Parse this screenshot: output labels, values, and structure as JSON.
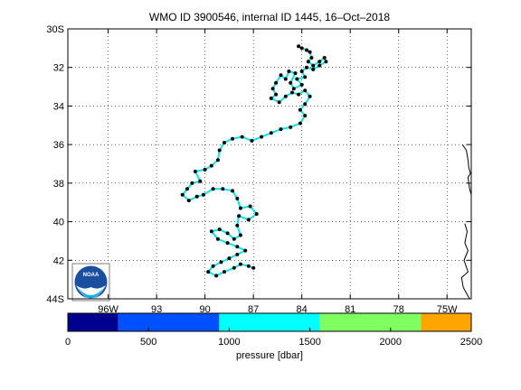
{
  "chart_data": {
    "type": "scatter",
    "title": "WMO ID 3900546, internal ID 1445, 16–Oct–2018",
    "xlim": [
      -98.5,
      -73.5
    ],
    "ylim": [
      -44,
      -30
    ],
    "x_ticks": [
      {
        "value": -96,
        "label": "96W"
      },
      {
        "value": -93,
        "label": "93"
      },
      {
        "value": -90,
        "label": "90"
      },
      {
        "value": -87,
        "label": "87"
      },
      {
        "value": -84,
        "label": "84"
      },
      {
        "value": -81,
        "label": "81"
      },
      {
        "value": -78,
        "label": "78"
      },
      {
        "value": -75,
        "label": "75W"
      }
    ],
    "y_ticks": [
      {
        "value": -30,
        "label": "30S"
      },
      {
        "value": -32,
        "label": "32"
      },
      {
        "value": -34,
        "label": "34"
      },
      {
        "value": -36,
        "label": "36"
      },
      {
        "value": -38,
        "label": "38"
      },
      {
        "value": -40,
        "label": "40"
      },
      {
        "value": -42,
        "label": "42"
      },
      {
        "value": -44,
        "label": "44S"
      }
    ],
    "grid": "dotted",
    "line_color": "#00e5ee",
    "marker_color": "#000000",
    "colorbar": {
      "label": "pressure [dbar]",
      "range": [
        0,
        2500
      ],
      "tick_values": [
        0,
        500,
        1000,
        1500,
        2000,
        2500
      ],
      "tick_labels": [
        "0",
        "500",
        "1000",
        "1500",
        "2000",
        "2500"
      ],
      "bands": [
        {
          "from": 0,
          "to": 312,
          "color": "#00008f"
        },
        {
          "from": 312,
          "to": 938,
          "color": "#0050ff"
        },
        {
          "from": 938,
          "to": 1562,
          "color": "#00ffff"
        },
        {
          "from": 1562,
          "to": 2188,
          "color": "#80ff60"
        },
        {
          "from": 2188,
          "to": 2500,
          "color": "#ffa500"
        }
      ]
    },
    "track": [
      [
        -84.2,
        -30.9
      ],
      [
        -84.0,
        -31.0
      ],
      [
        -83.7,
        -31.1
      ],
      [
        -83.5,
        -31.2
      ],
      [
        -83.4,
        -31.5
      ],
      [
        -83.6,
        -31.7
      ],
      [
        -83.3,
        -31.9
      ],
      [
        -82.9,
        -31.7
      ],
      [
        -82.6,
        -31.5
      ],
      [
        -82.5,
        -31.7
      ],
      [
        -82.9,
        -31.9
      ],
      [
        -83.3,
        -32.1
      ],
      [
        -83.7,
        -32.0
      ],
      [
        -84.0,
        -32.2
      ],
      [
        -83.8,
        -32.5
      ],
      [
        -84.3,
        -32.6
      ],
      [
        -84.0,
        -32.9
      ],
      [
        -84.5,
        -33.1
      ],
      [
        -84.7,
        -32.8
      ],
      [
        -84.4,
        -32.3
      ],
      [
        -84.8,
        -32.2
      ],
      [
        -85.0,
        -32.6
      ],
      [
        -85.3,
        -32.4
      ],
      [
        -85.6,
        -32.8
      ],
      [
        -85.8,
        -33.1
      ],
      [
        -85.6,
        -33.4
      ],
      [
        -85.9,
        -33.6
      ],
      [
        -85.4,
        -33.8
      ],
      [
        -85.0,
        -33.5
      ],
      [
        -84.6,
        -33.3
      ],
      [
        -84.2,
        -33.4
      ],
      [
        -83.8,
        -33.2
      ],
      [
        -83.5,
        -33.5
      ],
      [
        -83.8,
        -33.9
      ],
      [
        -84.1,
        -34.2
      ],
      [
        -83.8,
        -34.5
      ],
      [
        -84.1,
        -34.9
      ],
      [
        -84.7,
        -35.1
      ],
      [
        -85.3,
        -35.2
      ],
      [
        -85.9,
        -35.4
      ],
      [
        -86.5,
        -35.6
      ],
      [
        -87.1,
        -35.8
      ],
      [
        -87.7,
        -35.6
      ],
      [
        -88.3,
        -35.7
      ],
      [
        -88.8,
        -35.9
      ],
      [
        -89.1,
        -36.3
      ],
      [
        -89.2,
        -36.8
      ],
      [
        -89.6,
        -37.1
      ],
      [
        -90.0,
        -37.3
      ],
      [
        -90.6,
        -37.4
      ],
      [
        -90.3,
        -37.9
      ],
      [
        -90.8,
        -38.0
      ],
      [
        -91.1,
        -38.3
      ],
      [
        -91.4,
        -38.6
      ],
      [
        -91.0,
        -38.9
      ],
      [
        -90.5,
        -38.7
      ],
      [
        -90.1,
        -38.6
      ],
      [
        -89.5,
        -38.3
      ],
      [
        -88.9,
        -38.3
      ],
      [
        -88.3,
        -38.4
      ],
      [
        -88.0,
        -38.8
      ],
      [
        -87.8,
        -39.3
      ],
      [
        -87.2,
        -39.2
      ],
      [
        -86.8,
        -39.6
      ],
      [
        -87.3,
        -39.9
      ],
      [
        -87.9,
        -39.7
      ],
      [
        -88.0,
        -40.2
      ],
      [
        -87.8,
        -40.7
      ],
      [
        -88.2,
        -40.9
      ],
      [
        -88.6,
        -40.6
      ],
      [
        -89.1,
        -40.4
      ],
      [
        -89.6,
        -40.5
      ],
      [
        -89.2,
        -40.9
      ],
      [
        -88.6,
        -41.1
      ],
      [
        -88.0,
        -41.3
      ],
      [
        -87.5,
        -41.5
      ],
      [
        -88.0,
        -41.7
      ],
      [
        -88.5,
        -41.9
      ],
      [
        -89.0,
        -42.1
      ],
      [
        -89.5,
        -42.3
      ],
      [
        -89.8,
        -42.6
      ],
      [
        -89.3,
        -42.8
      ],
      [
        -88.8,
        -42.6
      ],
      [
        -88.2,
        -42.4
      ],
      [
        -87.8,
        -42.2
      ],
      [
        -87.3,
        -42.3
      ],
      [
        -87.0,
        -42.4
      ]
    ],
    "coastline": [
      [
        -74.05,
        -36.0
      ],
      [
        -73.8,
        -36.3
      ],
      [
        -73.7,
        -36.8
      ],
      [
        -73.65,
        -37.2
      ],
      [
        -73.55,
        -37.5
      ],
      [
        -73.7,
        -37.7
      ],
      [
        -73.6,
        -38.3
      ],
      [
        -73.5,
        -38.6
      ]
    ],
    "coastline2": [
      [
        -73.9,
        -40.1
      ],
      [
        -73.75,
        -40.5
      ],
      [
        -73.9,
        -41.1
      ],
      [
        -73.7,
        -41.5
      ],
      [
        -73.85,
        -41.8
      ],
      [
        -73.95,
        -42.0
      ],
      [
        -73.7,
        -42.6
      ],
      [
        -74.1,
        -42.9
      ],
      [
        -74.0,
        -43.4
      ],
      [
        -73.8,
        -43.7
      ],
      [
        -73.6,
        -44.0
      ]
    ]
  },
  "logo": {
    "text": "NOAA"
  }
}
